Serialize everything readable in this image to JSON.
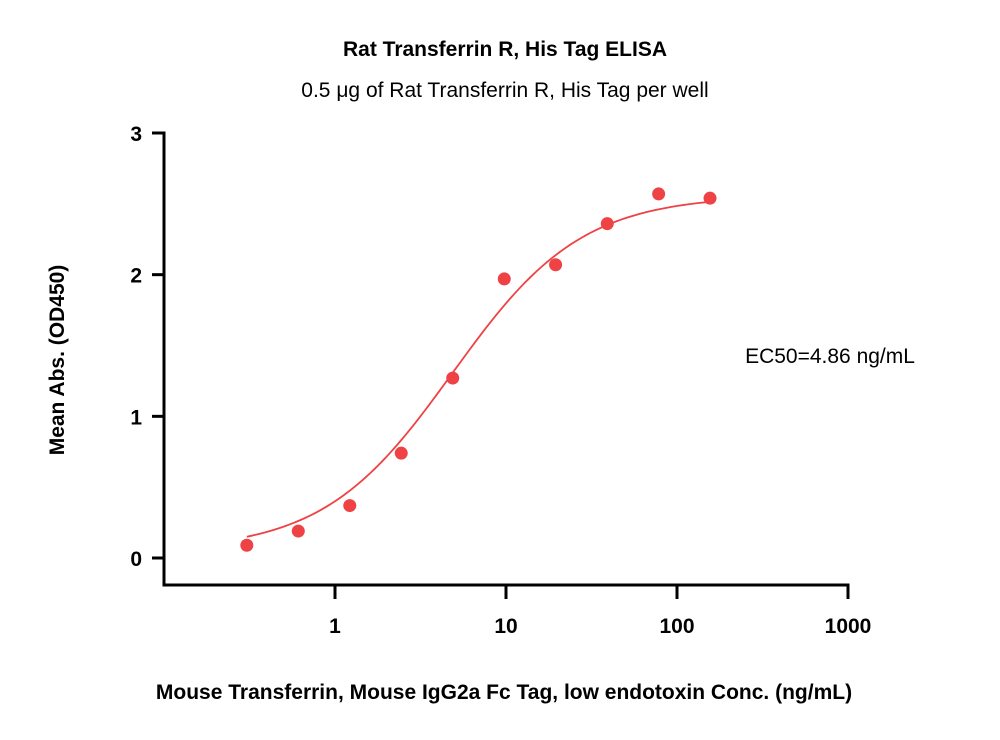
{
  "chart_data": {
    "type": "scatter",
    "title": "Rat Transferrin R, His Tag ELISA",
    "subtitle": "0.5 μg of Rat Transferrin R, His Tag per well",
    "xlabel": "Mouse Transferrin, Mouse IgG2a Fc Tag, low endotoxin Conc. (ng/mL)",
    "ylabel": "Mean Abs. (OD450)",
    "x_scale": "log",
    "xlim": [
      0.1,
      1000
    ],
    "ylim": [
      0,
      3
    ],
    "x_ticks": [
      1,
      10,
      100,
      1000
    ],
    "x_tick_labels": [
      "1",
      "10",
      "100",
      "1000"
    ],
    "y_ticks": [
      0,
      1,
      2,
      3
    ],
    "y_tick_labels": [
      "0",
      "1",
      "2",
      "3"
    ],
    "grid": false,
    "legend": "none",
    "annotation": "EC50=4.86 ng/mL",
    "color": "#ee4245",
    "series": [
      {
        "x": [
          0.305,
          0.61,
          1.22,
          2.44,
          4.88,
          9.77,
          19.5,
          39.1,
          78.1,
          156
        ],
        "y": [
          0.09,
          0.19,
          0.37,
          0.74,
          1.27,
          1.97,
          2.07,
          2.36,
          2.57,
          2.54
        ]
      }
    ],
    "fit": {
      "model": "4PL",
      "bottom": 0.05,
      "top": 2.56,
      "ec50": 4.86,
      "hill": 1.15,
      "x_range": [
        0.305,
        156
      ]
    }
  }
}
